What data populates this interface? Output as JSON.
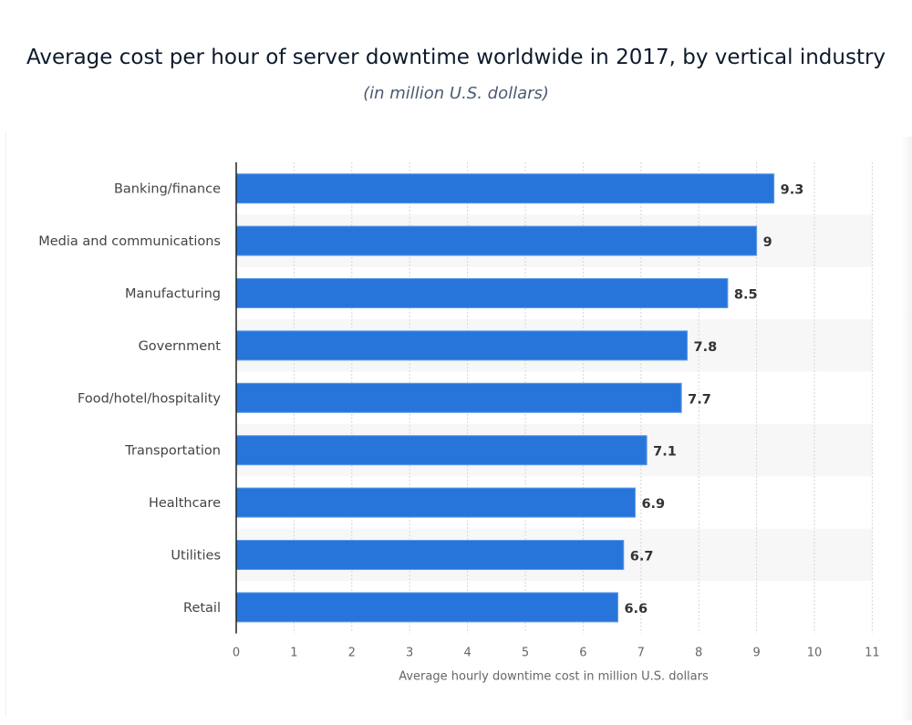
{
  "header": {
    "title": "Average cost per hour of server downtime worldwide in 2017, by vertical industry",
    "subtitle": "(in million U.S. dollars)"
  },
  "chart_data": {
    "type": "bar",
    "orientation": "horizontal",
    "title": "Average cost per hour of server downtime worldwide in 2017, by vertical industry",
    "subtitle": "(in million U.S. dollars)",
    "categories": [
      "Banking/finance",
      "Media and communications",
      "Manufacturing",
      "Government",
      "Food/hotel/hospitality",
      "Transportation",
      "Healthcare",
      "Utilities",
      "Retail"
    ],
    "values": [
      9.3,
      9,
      8.5,
      7.8,
      7.7,
      7.1,
      6.9,
      6.7,
      6.6
    ],
    "value_labels": [
      "9.3",
      "9",
      "8.5",
      "7.8",
      "7.7",
      "7.1",
      "6.9",
      "6.7",
      "6.6"
    ],
    "xlabel": "Average hourly downtime cost in million U.S. dollars",
    "ylabel": "",
    "xlim": [
      0,
      11
    ],
    "xticks": [
      "0",
      "1",
      "2",
      "3",
      "4",
      "5",
      "6",
      "7",
      "8",
      "9",
      "10",
      "11"
    ],
    "grid": "vertical dotted",
    "bar_color": "#2775db",
    "band_color": "#f7f7f7"
  }
}
